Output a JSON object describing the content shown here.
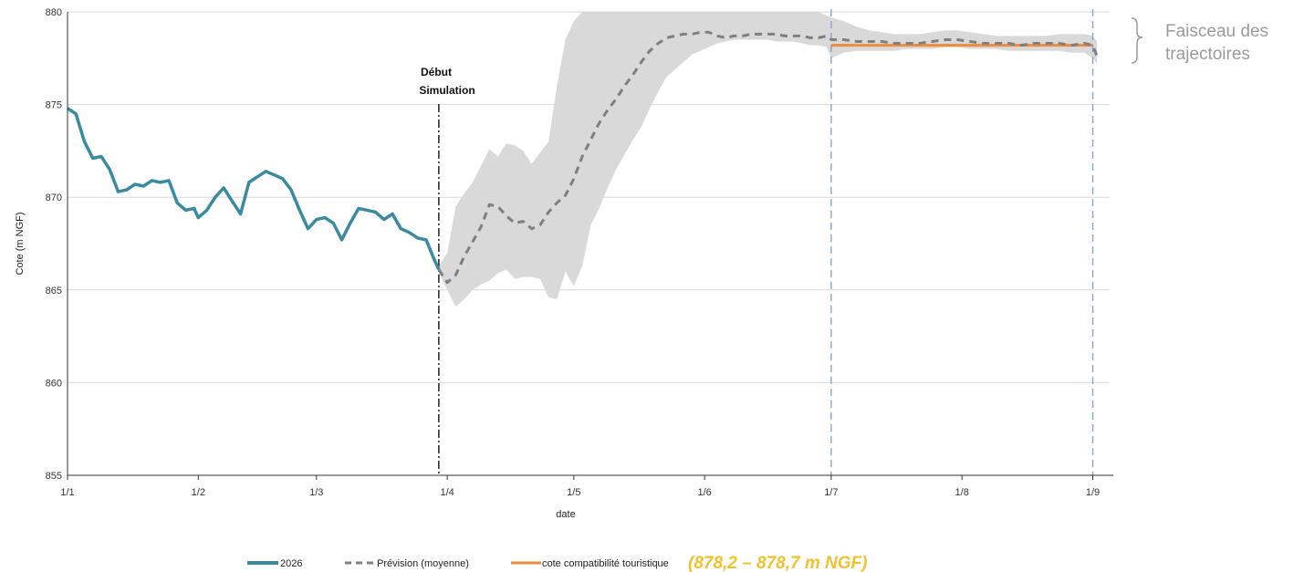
{
  "chart_data": {
    "type": "line",
    "ylabel": "Cote (m NGF)",
    "xlabel": "date",
    "ylim": [
      855,
      880
    ],
    "yticks": [
      855,
      860,
      865,
      870,
      875,
      880
    ],
    "xlim": [
      0,
      247
    ],
    "xticks": [
      {
        "label": "1/1",
        "day": 0
      },
      {
        "label": "1/2",
        "day": 31
      },
      {
        "label": "1/3",
        "day": 59
      },
      {
        "label": "1/4",
        "day": 90
      },
      {
        "label": "1/5",
        "day": 120
      },
      {
        "label": "1/6",
        "day": 151
      },
      {
        "label": "1/7",
        "day": 181
      },
      {
        "label": "1/8",
        "day": 212
      },
      {
        "label": "1/9",
        "day": 243
      }
    ],
    "grid": "horizontal",
    "annotation_start": {
      "label_line1": "Début",
      "label_line2": "Simulation",
      "day": 88
    },
    "reference_lines_days": [
      181,
      243
    ],
    "bundle_label": "Faisceau des trajectoires",
    "legend": {
      "position": "bottom",
      "items": [
        "2026",
        "Prévision (moyenne)",
        "cote compatibilité touristique"
      ]
    },
    "range_note": "(878,2 – 878,7 m NGF)",
    "colors": {
      "observed": "#3a8aa0",
      "forecast": "#7f7f7f",
      "band": "#d9d9d9",
      "target": "#f4a460",
      "target_line": "#f08a3c",
      "refline": "#7a9fd1",
      "note": "#f2c12e",
      "grid": "#d9d9d9"
    },
    "series": [
      {
        "name": "2026",
        "x": [
          0,
          2,
          4,
          6,
          8,
          10,
          12,
          14,
          16,
          18,
          20,
          22,
          24,
          26,
          28,
          30,
          31,
          33,
          35,
          37,
          39,
          41,
          43,
          45,
          47,
          49,
          51,
          53,
          55,
          57,
          59,
          61,
          63,
          65,
          67,
          69,
          71,
          73,
          75,
          77,
          79,
          81,
          83,
          85,
          87,
          88
        ],
        "y": [
          874.8,
          874.5,
          873,
          872.1,
          872.2,
          871.5,
          870.3,
          870.4,
          870.7,
          870.6,
          870.9,
          870.8,
          870.9,
          869.7,
          869.3,
          869.4,
          868.9,
          869.3,
          870,
          870.5,
          869.8,
          869.1,
          870.8,
          871.1,
          871.4,
          871.2,
          871,
          870.4,
          869.3,
          868.3,
          868.8,
          868.9,
          868.6,
          867.7,
          868.6,
          869.4,
          869.3,
          869.2,
          868.8,
          869.1,
          868.3,
          868.1,
          867.8,
          867.7,
          866.6,
          866.1
        ]
      },
      {
        "name": "Prévision (moyenne)",
        "x": [
          88,
          90,
          92,
          94,
          96,
          98,
          100,
          102,
          104,
          106,
          108,
          110,
          112,
          114,
          116,
          118,
          120,
          122,
          124,
          126,
          128,
          130,
          132,
          134,
          136,
          138,
          140,
          142,
          144,
          146,
          148,
          150,
          152,
          154,
          156,
          158,
          160,
          162,
          164,
          166,
          168,
          170,
          172,
          174,
          176,
          178,
          180,
          181,
          184,
          187,
          190,
          193,
          196,
          199,
          202,
          205,
          208,
          211,
          214,
          217,
          220,
          223,
          226,
          229,
          232,
          235,
          238,
          241,
          243,
          244
        ],
        "y": [
          866.1,
          865.4,
          865.8,
          866.8,
          867.6,
          868.4,
          869.6,
          869.5,
          869,
          868.6,
          868.7,
          868.3,
          868.5,
          869.2,
          869.7,
          870.1,
          871,
          872.2,
          873.1,
          874,
          874.7,
          875.3,
          876,
          876.6,
          877.3,
          877.9,
          878.3,
          878.6,
          878.7,
          878.8,
          878.8,
          878.9,
          878.9,
          878.7,
          878.6,
          878.7,
          878.7,
          878.8,
          878.8,
          878.8,
          878.8,
          878.7,
          878.7,
          878.7,
          878.6,
          878.6,
          878.7,
          878.5,
          878.5,
          878.4,
          878.4,
          878.4,
          878.3,
          878.3,
          878.3,
          878.4,
          878.5,
          878.5,
          878.4,
          878.3,
          878.3,
          878.3,
          878.2,
          878.3,
          878.3,
          878.3,
          878.2,
          878.3,
          878.2,
          877.6
        ]
      },
      {
        "name": "cote compatibilité touristique",
        "x": [
          181,
          243
        ],
        "y": [
          878.2,
          878.2
        ]
      }
    ],
    "band": {
      "x": [
        88,
        90,
        92,
        94,
        96,
        98,
        100,
        102,
        104,
        106,
        108,
        110,
        112,
        114,
        116,
        118,
        120,
        122,
        124,
        126,
        128,
        130,
        132,
        134,
        136,
        138,
        140,
        142,
        144,
        146,
        148,
        150,
        152,
        154,
        156,
        158,
        160,
        162,
        164,
        166,
        168,
        170,
        172,
        174,
        176,
        178,
        180,
        181,
        184,
        187,
        190,
        193,
        196,
        199,
        202,
        205,
        208,
        211,
        214,
        217,
        220,
        223,
        226,
        229,
        232,
        235,
        238,
        241,
        243,
        244
      ],
      "upper": [
        866.3,
        867,
        869.5,
        870.2,
        870.8,
        871.7,
        872.6,
        872.2,
        872.9,
        872.8,
        872.5,
        871.8,
        872.4,
        873,
        876,
        878.5,
        879.5,
        880,
        880,
        880,
        880,
        880,
        880,
        880,
        880,
        880,
        880,
        880,
        880,
        880,
        880,
        880,
        880,
        880,
        880,
        880,
        880,
        880,
        880,
        880,
        880,
        880,
        880,
        880,
        880,
        880,
        879.8,
        879.7,
        879.5,
        879.2,
        879,
        878.9,
        878.8,
        878.8,
        878.8,
        878.9,
        879,
        879,
        878.9,
        878.8,
        878.7,
        878.7,
        878.7,
        878.7,
        878.7,
        878.8,
        878.8,
        878.8,
        878.7,
        878.4
      ],
      "lower": [
        865.9,
        865,
        864.1,
        864.5,
        865,
        865.3,
        865.5,
        865.9,
        866.1,
        865.6,
        865.7,
        865.7,
        865.6,
        864.6,
        864.5,
        866,
        865.2,
        866.3,
        868.5,
        869.4,
        870.5,
        871.5,
        872.3,
        873.1,
        873.8,
        874.8,
        875.7,
        876.5,
        876.9,
        877.3,
        877.7,
        877.9,
        878.1,
        878.3,
        878.4,
        878.5,
        878.5,
        878.5,
        878.5,
        878.5,
        878.4,
        878.4,
        878.4,
        878.3,
        878.2,
        878.2,
        878.1,
        877.5,
        877.8,
        877.9,
        877.9,
        877.9,
        877.9,
        878,
        878,
        878,
        878.1,
        878.1,
        878,
        878,
        878,
        877.9,
        877.9,
        877.9,
        877.9,
        877.9,
        877.8,
        877.8,
        877.5,
        877.2
      ]
    }
  }
}
